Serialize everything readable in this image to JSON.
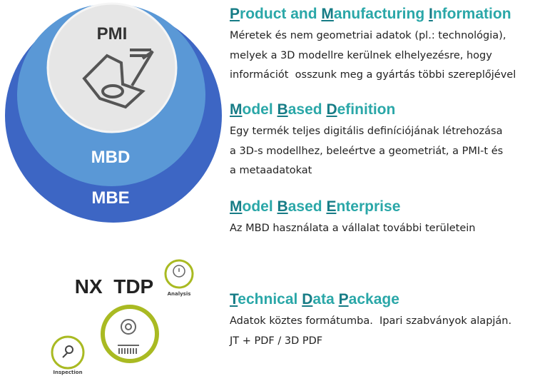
{
  "diagram": {
    "circles": [
      {
        "label": "MBE"
      },
      {
        "label": "MBD"
      },
      {
        "label": "PMI"
      }
    ],
    "tool": {
      "label": "NX  TDP",
      "icons": [
        "Analysis",
        "Inspection"
      ]
    },
    "sections": [
      {
        "title": "Product and Manufacturing Information",
        "lines": [
          "Méretek és nem geometriai adatok (pl.: technológia),",
          "melyek a 3D modellre kerülnek elhelyezésre, hogy",
          "információt  osszunk meg a gyártás többi szereplőjével"
        ]
      },
      {
        "title": "Model Based Definition",
        "lines": [
          "Egy termék teljes digitális definíciójának létrehozása",
          "a 3D-s modellhez, beleértve a geometriát, a PMI-t és",
          "a metaadatokat"
        ]
      },
      {
        "title": "Model Based Enterprise",
        "lines": [
          "Az MBD használata a vállalat további területein"
        ]
      },
      {
        "title": "Technical Data Package",
        "lines": [
          "Adatok köztes formátumba.  Ipari szabványok alapján.",
          "JT + PDF / 3D PDF"
        ]
      }
    ]
  }
}
